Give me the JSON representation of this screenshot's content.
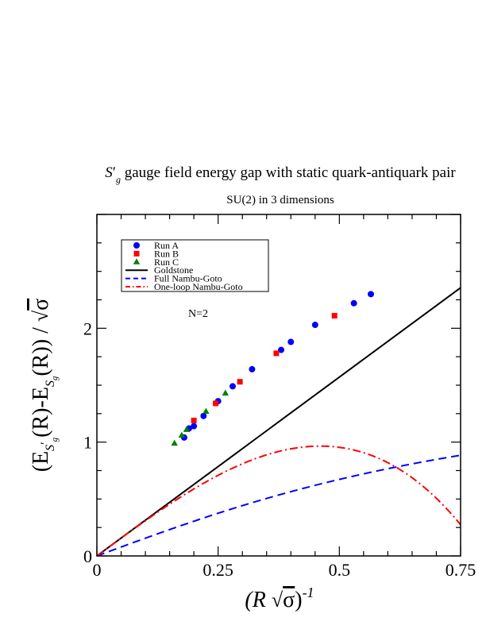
{
  "chart_data": {
    "type": "scatter",
    "title_parts": {
      "symbol": "S",
      "prime": "′",
      "sub": "g",
      "text": " gauge field energy gap with static quark-antiquark pair"
    },
    "subtitle": "SU(2) in 3 dimensions",
    "annotation": "N=2",
    "xlabel_parts": {
      "open": "(R ",
      "sigma": "σ",
      "close": ")",
      "sup": "-1"
    },
    "ylabel_parts": {
      "open": "(E",
      "s1": "S",
      "s1prime": "′",
      "s1sub": "g",
      "mid": "(R)-E",
      "s2": "S",
      "s2sub": "g",
      "end": "(R)) / ",
      "sigma": "σ"
    },
    "xlim": [
      0,
      0.75
    ],
    "ylim": [
      0,
      3.0
    ],
    "xticks": [
      {
        "value": 0,
        "label": "0"
      },
      {
        "value": 0.25,
        "label": "0.25"
      },
      {
        "value": 0.5,
        "label": "0.5"
      },
      {
        "value": 0.75,
        "label": "0.75"
      }
    ],
    "yticks": [
      {
        "value": 0,
        "label": "0"
      },
      {
        "value": 1,
        "label": "1"
      },
      {
        "value": 2,
        "label": "2"
      }
    ],
    "legend_position": "top-left",
    "series": [
      {
        "name": "Run A",
        "kind": "points",
        "marker": "circle",
        "color": "#0000ff",
        "points": [
          [
            0.18,
            1.04
          ],
          [
            0.19,
            1.12
          ],
          [
            0.2,
            1.14
          ],
          [
            0.22,
            1.23
          ],
          [
            0.25,
            1.36
          ],
          [
            0.28,
            1.49
          ],
          [
            0.32,
            1.64
          ],
          [
            0.38,
            1.81
          ],
          [
            0.4,
            1.88
          ],
          [
            0.45,
            2.03
          ],
          [
            0.53,
            2.22
          ],
          [
            0.565,
            2.3
          ]
        ]
      },
      {
        "name": "Run B",
        "kind": "points",
        "marker": "square",
        "color": "#ff0000",
        "points": [
          [
            0.2,
            1.19
          ],
          [
            0.245,
            1.34
          ],
          [
            0.295,
            1.53
          ],
          [
            0.37,
            1.78
          ],
          [
            0.49,
            2.11
          ]
        ]
      },
      {
        "name": "Run C",
        "kind": "points",
        "marker": "triangle",
        "color": "#008000",
        "points": [
          [
            0.16,
            0.99
          ],
          [
            0.175,
            1.06
          ],
          [
            0.185,
            1.11
          ],
          [
            0.225,
            1.27
          ],
          [
            0.265,
            1.43
          ]
        ]
      },
      {
        "name": "Goldstone",
        "kind": "line",
        "style": "solid",
        "color": "#000000",
        "formula": "goldstone"
      },
      {
        "name": "Full Nambu-Goto",
        "kind": "line",
        "style": "dashed",
        "color": "#0000ff",
        "formula": "full_nambu_goto"
      },
      {
        "name": "One-loop Nambu-Goto",
        "kind": "line",
        "style": "dashdot",
        "color": "#ff0000",
        "formula": "one_loop_nambu_goto"
      }
    ]
  }
}
